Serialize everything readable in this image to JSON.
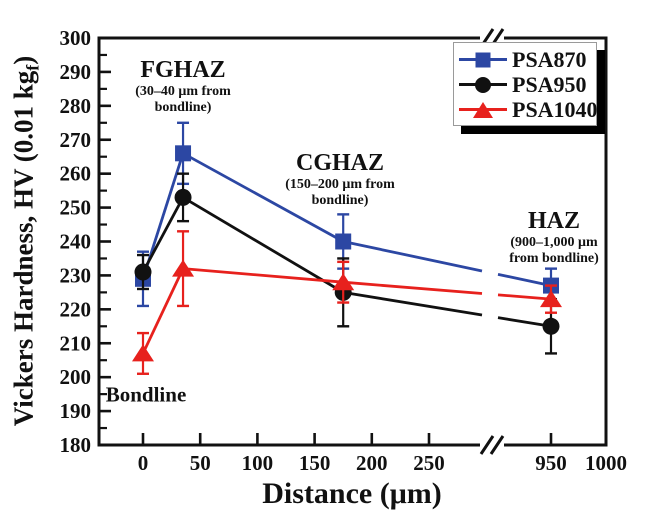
{
  "figure": {
    "background": "#ffffff",
    "frame_color": "#111111"
  },
  "chart_data": {
    "type": "line",
    "title": "",
    "xlabel": "Distance (μm)",
    "ylabel": "Vickers Hardness, HV (0.01 kgf)",
    "ylabel_prefix": "Vickers Hardness, HV (0.01 kg",
    "ylabel_sub": "f",
    "ylabel_suffix": ")",
    "ylim": [
      180,
      300
    ],
    "y_tick_step": 10,
    "y_minor_tick_step": 5,
    "y_ticks": [
      180,
      190,
      200,
      210,
      220,
      230,
      240,
      250,
      260,
      270,
      280,
      290,
      300
    ],
    "x_ticks": [
      0,
      50,
      100,
      150,
      200,
      250,
      950,
      1000
    ],
    "x": [
      0,
      35,
      175,
      950
    ],
    "x_axis_break": {
      "symbol": "//",
      "between": [
        280,
        930
      ]
    },
    "grid": false,
    "legend_position": "top-right-inside",
    "series": [
      {
        "name": "PSA870",
        "color": "#2c47a3",
        "marker": "square",
        "values": [
          229,
          266,
          240,
          227
        ],
        "errors": [
          8,
          9,
          8,
          5
        ]
      },
      {
        "name": "PSA950",
        "color": "#111111",
        "marker": "circle",
        "values": [
          231,
          253,
          225,
          215
        ],
        "errors": [
          5,
          7,
          10,
          8
        ]
      },
      {
        "name": "PSA1040",
        "color": "#e7211d",
        "marker": "triangle",
        "values": [
          207,
          232,
          228,
          223
        ],
        "errors": [
          6,
          11,
          6,
          4
        ]
      }
    ],
    "annotations": {
      "fghaz": {
        "title": "FGHAZ",
        "line1": "(30–40 μm from",
        "line2": "bondline)"
      },
      "cghaz": {
        "title": "CGHAZ",
        "line1": "(150–200 μm from",
        "line2": "bondline)"
      },
      "haz": {
        "title": "HAZ",
        "line1": "(900–1,000 μm",
        "line2": "from bondline)"
      },
      "bondline": "Bondline"
    }
  }
}
